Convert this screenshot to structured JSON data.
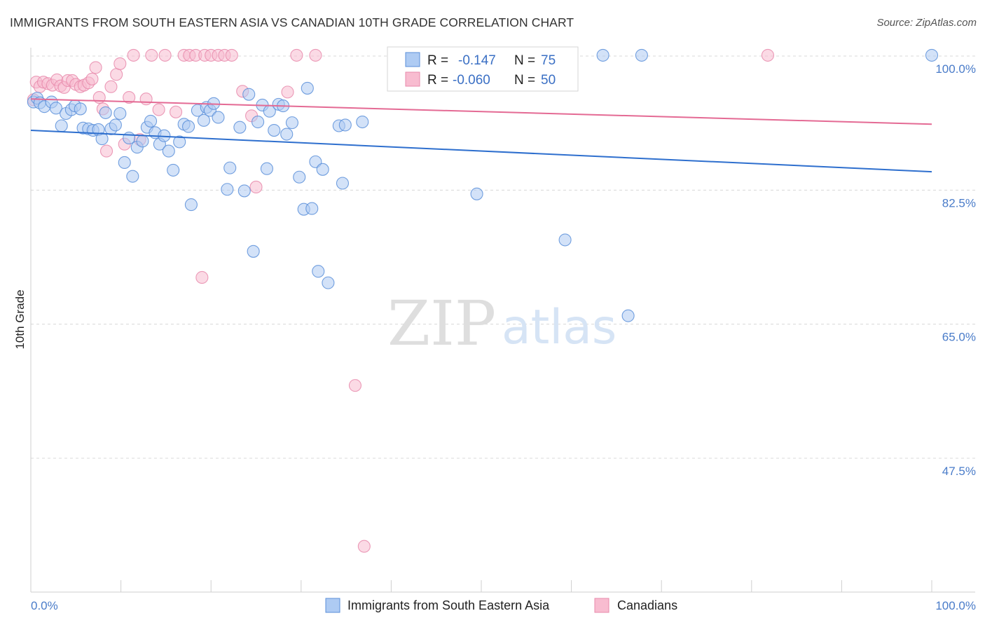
{
  "title": "IMMIGRANTS FROM SOUTH EASTERN ASIA VS CANADIAN 10TH GRADE CORRELATION CHART",
  "source": "Source: ZipAtlas.com",
  "watermark": {
    "zip": "ZIP",
    "atlas": "atlas"
  },
  "colors": {
    "blue_fill": "#aecbf3",
    "blue_stroke": "#5b8fd9",
    "blue_line": "#2e6fce",
    "pink_fill": "#f8bcd0",
    "pink_stroke": "#e88aab",
    "pink_line": "#e46a94",
    "tick_text": "#4a7cc9",
    "grid": "#d8d8d8"
  },
  "stats": {
    "r_label": "R =",
    "n_label": "N =",
    "rows": [
      {
        "series": "blue",
        "r": "-0.147",
        "n": "75"
      },
      {
        "series": "pink",
        "r": "-0.060",
        "n": "50"
      }
    ]
  },
  "chart_data": {
    "type": "scatter",
    "title": "IMMIGRANTS FROM SOUTH EASTERN ASIA VS CANADIAN 10TH GRADE CORRELATION CHART",
    "xlabel": "",
    "ylabel": "10th Grade",
    "xlim": [
      0,
      100
    ],
    "ylim": [
      32.5,
      101.5
    ],
    "x_tick_labels": [
      "0.0%",
      "100.0%"
    ],
    "y_ticks": [
      {
        "value": 100.0,
        "label": "100.0%"
      },
      {
        "value": 82.5,
        "label": "82.5%"
      },
      {
        "value": 65.0,
        "label": "65.0%"
      },
      {
        "value": 47.5,
        "label": "47.5%"
      }
    ],
    "grid": true,
    "legend_position": "bottom-center",
    "series": [
      {
        "name": "Immigrants from South Eastern Asia",
        "color": "blue",
        "trend": {
          "x": [
            0,
            100
          ],
          "y": [
            90.3,
            84.9
          ]
        },
        "points": [
          {
            "x": 0.3,
            "y": 94.0
          },
          {
            "x": 0.7,
            "y": 94.5
          },
          {
            "x": 1.0,
            "y": 93.9
          },
          {
            "x": 1.5,
            "y": 93.4
          },
          {
            "x": 2.3,
            "y": 94.0
          },
          {
            "x": 2.8,
            "y": 93.2
          },
          {
            "x": 3.4,
            "y": 90.9
          },
          {
            "x": 3.9,
            "y": 92.5
          },
          {
            "x": 4.5,
            "y": 93.0
          },
          {
            "x": 4.9,
            "y": 93.5
          },
          {
            "x": 5.5,
            "y": 93.1
          },
          {
            "x": 5.8,
            "y": 90.6
          },
          {
            "x": 6.4,
            "y": 90.5
          },
          {
            "x": 6.9,
            "y": 90.3
          },
          {
            "x": 7.5,
            "y": 90.4
          },
          {
            "x": 7.9,
            "y": 89.2
          },
          {
            "x": 8.3,
            "y": 92.6
          },
          {
            "x": 8.9,
            "y": 90.5
          },
          {
            "x": 9.4,
            "y": 91.0
          },
          {
            "x": 9.9,
            "y": 92.5
          },
          {
            "x": 10.4,
            "y": 86.1
          },
          {
            "x": 10.9,
            "y": 89.3
          },
          {
            "x": 11.3,
            "y": 84.3
          },
          {
            "x": 11.8,
            "y": 88.1
          },
          {
            "x": 12.4,
            "y": 88.9
          },
          {
            "x": 12.9,
            "y": 90.7
          },
          {
            "x": 13.3,
            "y": 91.5
          },
          {
            "x": 13.8,
            "y": 90.0
          },
          {
            "x": 14.3,
            "y": 88.5
          },
          {
            "x": 14.8,
            "y": 89.6
          },
          {
            "x": 15.3,
            "y": 87.6
          },
          {
            "x": 15.8,
            "y": 85.1
          },
          {
            "x": 16.5,
            "y": 88.8
          },
          {
            "x": 17.0,
            "y": 91.1
          },
          {
            "x": 17.5,
            "y": 90.8
          },
          {
            "x": 17.8,
            "y": 80.6
          },
          {
            "x": 18.5,
            "y": 92.9
          },
          {
            "x": 19.2,
            "y": 91.6
          },
          {
            "x": 19.5,
            "y": 93.3
          },
          {
            "x": 19.9,
            "y": 92.9
          },
          {
            "x": 20.3,
            "y": 93.8
          },
          {
            "x": 20.8,
            "y": 92.0
          },
          {
            "x": 21.8,
            "y": 82.6
          },
          {
            "x": 22.1,
            "y": 85.4
          },
          {
            "x": 23.2,
            "y": 90.7
          },
          {
            "x": 23.7,
            "y": 82.4
          },
          {
            "x": 24.2,
            "y": 95.0
          },
          {
            "x": 24.7,
            "y": 74.5
          },
          {
            "x": 25.2,
            "y": 91.4
          },
          {
            "x": 25.7,
            "y": 93.6
          },
          {
            "x": 26.2,
            "y": 85.3
          },
          {
            "x": 26.5,
            "y": 92.8
          },
          {
            "x": 27.0,
            "y": 90.3
          },
          {
            "x": 27.5,
            "y": 93.7
          },
          {
            "x": 28.0,
            "y": 93.5
          },
          {
            "x": 28.4,
            "y": 89.8
          },
          {
            "x": 29.0,
            "y": 91.3
          },
          {
            "x": 29.8,
            "y": 84.2
          },
          {
            "x": 30.3,
            "y": 80.0
          },
          {
            "x": 30.7,
            "y": 95.8
          },
          {
            "x": 31.2,
            "y": 80.1
          },
          {
            "x": 31.6,
            "y": 86.2
          },
          {
            "x": 31.9,
            "y": 71.9
          },
          {
            "x": 32.4,
            "y": 85.2
          },
          {
            "x": 33.0,
            "y": 70.4
          },
          {
            "x": 34.2,
            "y": 90.9
          },
          {
            "x": 34.6,
            "y": 83.4
          },
          {
            "x": 34.9,
            "y": 91.0
          },
          {
            "x": 36.8,
            "y": 91.4
          },
          {
            "x": 49.5,
            "y": 82.0
          },
          {
            "x": 59.3,
            "y": 76.0
          },
          {
            "x": 63.5,
            "y": 100.1
          },
          {
            "x": 66.3,
            "y": 66.1
          },
          {
            "x": 67.8,
            "y": 100.1
          },
          {
            "x": 100.0,
            "y": 100.1
          }
        ]
      },
      {
        "name": "Canadians",
        "color": "pink",
        "trend": {
          "x": [
            0,
            100
          ],
          "y": [
            94.4,
            91.1
          ]
        },
        "points": [
          {
            "x": 0.3,
            "y": 94.3
          },
          {
            "x": 0.6,
            "y": 96.6
          },
          {
            "x": 1.0,
            "y": 96.0
          },
          {
            "x": 1.4,
            "y": 96.6
          },
          {
            "x": 1.9,
            "y": 96.4
          },
          {
            "x": 2.4,
            "y": 96.2
          },
          {
            "x": 2.9,
            "y": 96.9
          },
          {
            "x": 3.3,
            "y": 96.1
          },
          {
            "x": 3.7,
            "y": 95.9
          },
          {
            "x": 4.1,
            "y": 96.8
          },
          {
            "x": 4.6,
            "y": 96.8
          },
          {
            "x": 5.0,
            "y": 96.3
          },
          {
            "x": 5.5,
            "y": 96.0
          },
          {
            "x": 5.9,
            "y": 96.2
          },
          {
            "x": 6.4,
            "y": 96.5
          },
          {
            "x": 6.8,
            "y": 97.0
          },
          {
            "x": 7.2,
            "y": 98.5
          },
          {
            "x": 7.6,
            "y": 94.6
          },
          {
            "x": 8.0,
            "y": 93.1
          },
          {
            "x": 8.4,
            "y": 87.6
          },
          {
            "x": 8.9,
            "y": 96.0
          },
          {
            "x": 9.5,
            "y": 97.6
          },
          {
            "x": 9.9,
            "y": 99.0
          },
          {
            "x": 10.4,
            "y": 88.5
          },
          {
            "x": 10.9,
            "y": 94.6
          },
          {
            "x": 11.4,
            "y": 100.1
          },
          {
            "x": 12.1,
            "y": 89.1
          },
          {
            "x": 12.8,
            "y": 94.4
          },
          {
            "x": 13.4,
            "y": 100.1
          },
          {
            "x": 14.2,
            "y": 93.0
          },
          {
            "x": 14.9,
            "y": 100.1
          },
          {
            "x": 16.1,
            "y": 92.7
          },
          {
            "x": 17.0,
            "y": 100.1
          },
          {
            "x": 17.6,
            "y": 100.1
          },
          {
            "x": 18.3,
            "y": 100.1
          },
          {
            "x": 19.0,
            "y": 71.1
          },
          {
            "x": 19.3,
            "y": 100.1
          },
          {
            "x": 20.0,
            "y": 100.1
          },
          {
            "x": 20.8,
            "y": 100.1
          },
          {
            "x": 21.5,
            "y": 100.1
          },
          {
            "x": 22.3,
            "y": 100.1
          },
          {
            "x": 23.5,
            "y": 95.4
          },
          {
            "x": 24.5,
            "y": 92.2
          },
          {
            "x": 25.0,
            "y": 82.9
          },
          {
            "x": 28.5,
            "y": 95.3
          },
          {
            "x": 29.5,
            "y": 100.1
          },
          {
            "x": 31.6,
            "y": 100.1
          },
          {
            "x": 36.0,
            "y": 57.0
          },
          {
            "x": 37.0,
            "y": 36.0
          },
          {
            "x": 81.8,
            "y": 100.1
          }
        ]
      }
    ]
  }
}
